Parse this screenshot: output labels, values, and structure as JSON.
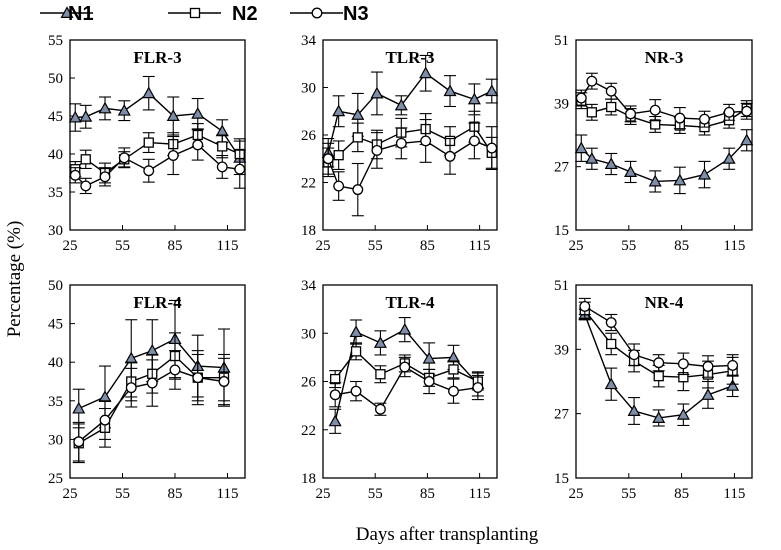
{
  "figure": {
    "xlabel": "Days after transplanting",
    "ylabel": "Percentage (%)"
  },
  "legend": {
    "items": [
      {
        "label": "N1",
        "marker": "triangle"
      },
      {
        "label": "N2",
        "marker": "square"
      },
      {
        "label": "N3",
        "marker": "circle"
      }
    ]
  },
  "colors": {
    "n1_marker": "#7f8ea8",
    "n1_line": "#000000",
    "n2_marker": "#ffffff",
    "n3_marker": "#ffffff",
    "axis": "#000000"
  },
  "chart_data": [
    {
      "type": "line",
      "title": "FLR-3",
      "xlim": [
        25,
        125
      ],
      "xticks": [
        25,
        55,
        85,
        115
      ],
      "ylim": [
        30,
        55
      ],
      "yticks": [
        30,
        35,
        40,
        45,
        50,
        55
      ],
      "series": [
        {
          "name": "N1",
          "x": [
            28,
            34,
            45,
            56,
            70,
            84,
            98,
            112,
            122
          ],
          "values": [
            44.8,
            44.9,
            46.0,
            45.7,
            48.0,
            45.0,
            45.3,
            43.0,
            39.5
          ],
          "err": [
            1.8,
            1.5,
            1.5,
            1.3,
            2.2,
            2.5,
            2.0,
            1.5,
            2.2
          ]
        },
        {
          "name": "N2",
          "x": [
            28,
            34,
            45,
            56,
            70,
            84,
            98,
            112,
            122
          ],
          "values": [
            38.0,
            39.3,
            37.5,
            39.3,
            41.5,
            41.3,
            42.5,
            41.0,
            40.0
          ],
          "err": [
            1.0,
            1.2,
            1.3,
            1.0,
            1.3,
            1.5,
            1.5,
            1.5,
            2.0
          ]
        },
        {
          "name": "N3",
          "x": [
            28,
            34,
            45,
            56,
            70,
            84,
            98,
            112,
            122
          ],
          "values": [
            37.2,
            35.8,
            37.0,
            39.5,
            37.8,
            39.8,
            41.2,
            38.3,
            38.0
          ],
          "err": [
            1.0,
            1.0,
            1.2,
            1.3,
            1.5,
            2.5,
            2.0,
            1.5,
            2.5
          ]
        }
      ]
    },
    {
      "type": "line",
      "title": "TLR-3",
      "xlim": [
        25,
        125
      ],
      "xticks": [
        25,
        55,
        85,
        115
      ],
      "ylim": [
        18,
        34
      ],
      "yticks": [
        18,
        22,
        26,
        30,
        34
      ],
      "series": [
        {
          "name": "N1",
          "x": [
            28,
            34,
            45,
            56,
            70,
            84,
            98,
            112,
            122
          ],
          "values": [
            24.5,
            28.0,
            27.7,
            29.5,
            28.5,
            31.2,
            29.7,
            29.0,
            29.7
          ],
          "err": [
            1.2,
            1.3,
            1.8,
            1.8,
            0.8,
            1.5,
            1.3,
            1.3,
            1.0
          ]
        },
        {
          "name": "N2",
          "x": [
            28,
            34,
            45,
            56,
            70,
            84,
            98,
            112,
            122
          ],
          "values": [
            23.7,
            24.3,
            25.8,
            25.2,
            26.2,
            26.5,
            25.5,
            26.7,
            24.5
          ],
          "err": [
            1.2,
            1.2,
            1.2,
            1.2,
            1.2,
            1.3,
            1.2,
            1.3,
            1.3
          ]
        },
        {
          "name": "N3",
          "x": [
            28,
            34,
            45,
            56,
            70,
            84,
            98,
            112,
            122
          ],
          "values": [
            24.0,
            21.7,
            21.4,
            24.7,
            25.3,
            25.5,
            24.2,
            25.5,
            24.9
          ],
          "err": [
            1.3,
            1.2,
            2.2,
            1.5,
            1.3,
            1.8,
            1.5,
            1.5,
            1.8
          ]
        }
      ]
    },
    {
      "type": "line",
      "title": "NR-3",
      "xlim": [
        25,
        125
      ],
      "xticks": [
        25,
        55,
        85,
        115
      ],
      "ylim": [
        15,
        51
      ],
      "yticks": [
        15,
        27,
        39,
        51
      ],
      "series": [
        {
          "name": "N1",
          "x": [
            28,
            34,
            45,
            56,
            70,
            84,
            98,
            112,
            122
          ],
          "values": [
            30.5,
            28.5,
            27.5,
            26.0,
            24.2,
            24.4,
            25.5,
            28.5,
            32.0
          ],
          "err": [
            2.5,
            2.0,
            2.0,
            2.0,
            2.0,
            2.5,
            2.5,
            2.0,
            2.0
          ]
        },
        {
          "name": "N2",
          "x": [
            28,
            34,
            45,
            56,
            70,
            84,
            98,
            112,
            122
          ],
          "values": [
            39.5,
            37.3,
            38.3,
            36.5,
            35.0,
            34.8,
            34.5,
            35.8,
            38.0
          ],
          "err": [
            1.5,
            1.5,
            1.5,
            1.5,
            1.5,
            1.5,
            1.5,
            1.5,
            1.5
          ]
        },
        {
          "name": "N3",
          "x": [
            28,
            34,
            45,
            56,
            70,
            84,
            98,
            112,
            122
          ],
          "values": [
            40.0,
            43.2,
            41.3,
            37.0,
            37.7,
            36.2,
            36.0,
            37.3,
            37.5
          ],
          "err": [
            1.5,
            1.5,
            1.5,
            1.5,
            2.0,
            2.0,
            1.5,
            1.5,
            1.5
          ]
        }
      ]
    },
    {
      "type": "line",
      "title": "FLR-4",
      "xlim": [
        25,
        125
      ],
      "xticks": [
        25,
        55,
        85,
        115
      ],
      "ylim": [
        25,
        50
      ],
      "yticks": [
        25,
        30,
        35,
        40,
        45,
        50
      ],
      "series": [
        {
          "name": "N1",
          "x": [
            30,
            45,
            60,
            72,
            85,
            98,
            113
          ],
          "values": [
            34.0,
            35.5,
            40.5,
            41.5,
            43.0,
            39.5,
            39.3
          ],
          "err": [
            2.5,
            4.0,
            5.0,
            4.0,
            5.0,
            4.0,
            5.0
          ]
        },
        {
          "name": "N2",
          "x": [
            30,
            45,
            60,
            72,
            85,
            98,
            113
          ],
          "values": [
            29.5,
            31.5,
            37.5,
            38.5,
            40.8,
            38.0,
            38.0
          ],
          "err": [
            2.5,
            2.5,
            2.5,
            2.5,
            3.0,
            3.0,
            3.0
          ]
        },
        {
          "name": "N3",
          "x": [
            30,
            45,
            60,
            72,
            85,
            98,
            113
          ],
          "values": [
            29.7,
            32.5,
            36.7,
            37.3,
            39.0,
            38.0,
            37.5
          ],
          "err": [
            2.5,
            2.5,
            2.5,
            3.0,
            2.5,
            3.5,
            3.0
          ]
        }
      ]
    },
    {
      "type": "line",
      "title": "TLR-4",
      "xlim": [
        25,
        125
      ],
      "xticks": [
        25,
        55,
        85,
        115
      ],
      "ylim": [
        18,
        34
      ],
      "yticks": [
        18,
        22,
        26,
        30,
        34
      ],
      "series": [
        {
          "name": "N1",
          "x": [
            32,
            44,
            58,
            72,
            86,
            100,
            114
          ],
          "values": [
            22.7,
            30.1,
            29.2,
            30.3,
            27.9,
            28.0,
            25.8
          ],
          "err": [
            1.0,
            1.0,
            1.0,
            1.0,
            1.3,
            1.0,
            1.0
          ]
        },
        {
          "name": "N2",
          "x": [
            32,
            44,
            58,
            72,
            86,
            100,
            114
          ],
          "values": [
            26.2,
            28.5,
            26.6,
            27.5,
            26.3,
            27.0,
            26.0
          ],
          "err": [
            0.7,
            0.7,
            0.7,
            0.7,
            0.7,
            0.7,
            0.7
          ]
        },
        {
          "name": "N3",
          "x": [
            32,
            44,
            58,
            72,
            86,
            100,
            114
          ],
          "values": [
            24.9,
            25.2,
            23.7,
            27.2,
            26.0,
            25.2,
            25.5
          ],
          "err": [
            1.0,
            0.8,
            0.5,
            0.8,
            1.0,
            1.0,
            1.0
          ]
        }
      ]
    },
    {
      "type": "line",
      "title": "NR-4",
      "xlim": [
        25,
        125
      ],
      "xticks": [
        25,
        55,
        85,
        115
      ],
      "ylim": [
        15,
        51
      ],
      "yticks": [
        15,
        27,
        39,
        51
      ],
      "series": [
        {
          "name": "N1",
          "x": [
            30,
            45,
            58,
            72,
            86,
            100,
            114
          ],
          "values": [
            45.5,
            32.5,
            27.5,
            26.2,
            26.8,
            30.5,
            32.2
          ],
          "err": [
            1.0,
            3.0,
            2.5,
            1.5,
            2.0,
            2.5,
            2.0
          ]
        },
        {
          "name": "N2",
          "x": [
            30,
            45,
            58,
            72,
            86,
            100,
            114
          ],
          "values": [
            46.3,
            40.0,
            36.8,
            34.0,
            33.8,
            34.3,
            35.0
          ],
          "err": [
            1.5,
            2.0,
            2.0,
            2.0,
            2.5,
            2.5,
            2.5
          ]
        },
        {
          "name": "N3",
          "x": [
            30,
            45,
            58,
            72,
            86,
            100,
            114
          ],
          "values": [
            47.0,
            44.0,
            38.0,
            36.5,
            36.3,
            35.8,
            36.0
          ],
          "err": [
            1.5,
            1.5,
            2.0,
            1.5,
            2.0,
            2.0,
            2.0
          ]
        }
      ]
    }
  ]
}
